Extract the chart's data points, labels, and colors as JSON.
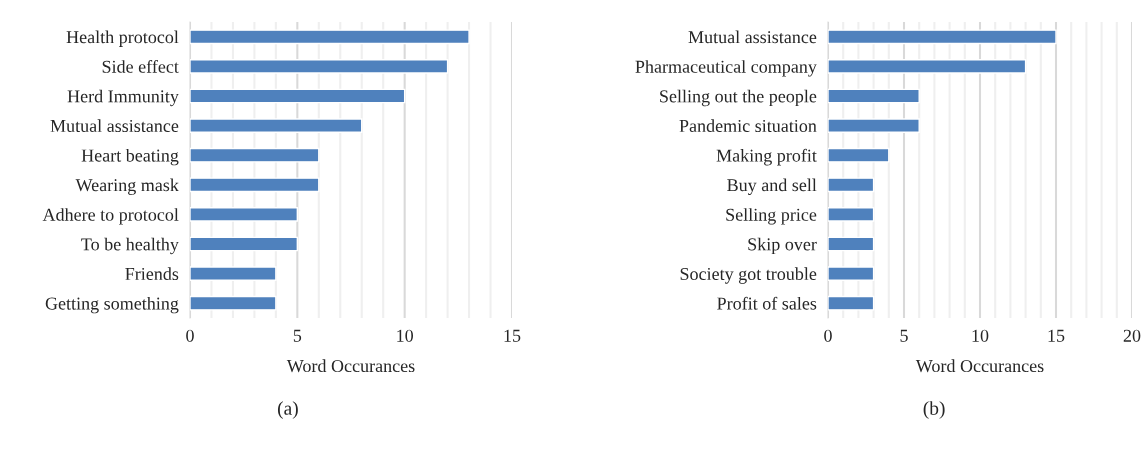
{
  "chart_data": [
    {
      "type": "bar",
      "orientation": "horizontal",
      "xlabel": "Word Occurances",
      "annotations": [
        "(a)"
      ],
      "categories": [
        "Health protocol",
        "Side effect",
        "Herd Immunity",
        "Mutual assistance",
        "Heart beating",
        "Wearing mask",
        "Adhere to protocol",
        "To be healthy",
        "Friends",
        "Getting something"
      ],
      "values": [
        13,
        12,
        10,
        8,
        6,
        6,
        5,
        5,
        4,
        4
      ],
      "color": "#4f81bd",
      "xlim": [
        0,
        15
      ],
      "xticks": [
        0,
        {
          "value": 1,
          "label": null
        },
        {
          "value": 2,
          "label": null
        },
        {
          "value": 3,
          "label": null
        },
        {
          "value": 4,
          "label": null
        },
        5,
        {
          "value": 6,
          "label": null
        },
        {
          "value": 7,
          "label": null
        },
        {
          "value": 8,
          "label": null
        },
        {
          "value": 9,
          "label": null
        },
        10,
        {
          "value": 11,
          "label": null
        },
        {
          "value": 12,
          "label": null
        },
        {
          "value": 13,
          "label": null
        },
        {
          "value": 14,
          "label": null
        },
        15
      ],
      "grid": "x"
    },
    {
      "type": "bar",
      "orientation": "horizontal",
      "xlabel": "Word Occurances",
      "annotations": [
        "(b)"
      ],
      "categories": [
        "Mutual assistance",
        "Pharmaceutical company",
        "Selling out the people",
        "Pandemic situation",
        "Making profit",
        "Buy and sell",
        "Selling price",
        "Skip over",
        "Society got trouble",
        "Profit of sales"
      ],
      "values": [
        15,
        13,
        6,
        6,
        4,
        3,
        3,
        3,
        3,
        3
      ],
      "color": "#4f81bd",
      "xlim": [
        0,
        20
      ],
      "xticks": [
        0,
        {
          "value": 1,
          "label": null
        },
        {
          "value": 2,
          "label": null
        },
        {
          "value": 3,
          "label": null
        },
        {
          "value": 4,
          "label": null
        },
        5,
        {
          "value": 6,
          "label": null
        },
        {
          "value": 7,
          "label": null
        },
        {
          "value": 8,
          "label": null
        },
        {
          "value": 9,
          "label": null
        },
        10,
        {
          "value": 11,
          "label": null
        },
        {
          "value": 12,
          "label": null
        },
        {
          "value": 13,
          "label": null
        },
        {
          "value": 14,
          "label": null
        },
        15,
        {
          "value": 16,
          "label": null
        },
        {
          "value": 17,
          "label": null
        },
        {
          "value": 18,
          "label": null
        },
        {
          "value": 19,
          "label": null
        },
        20
      ],
      "grid": "x"
    }
  ]
}
